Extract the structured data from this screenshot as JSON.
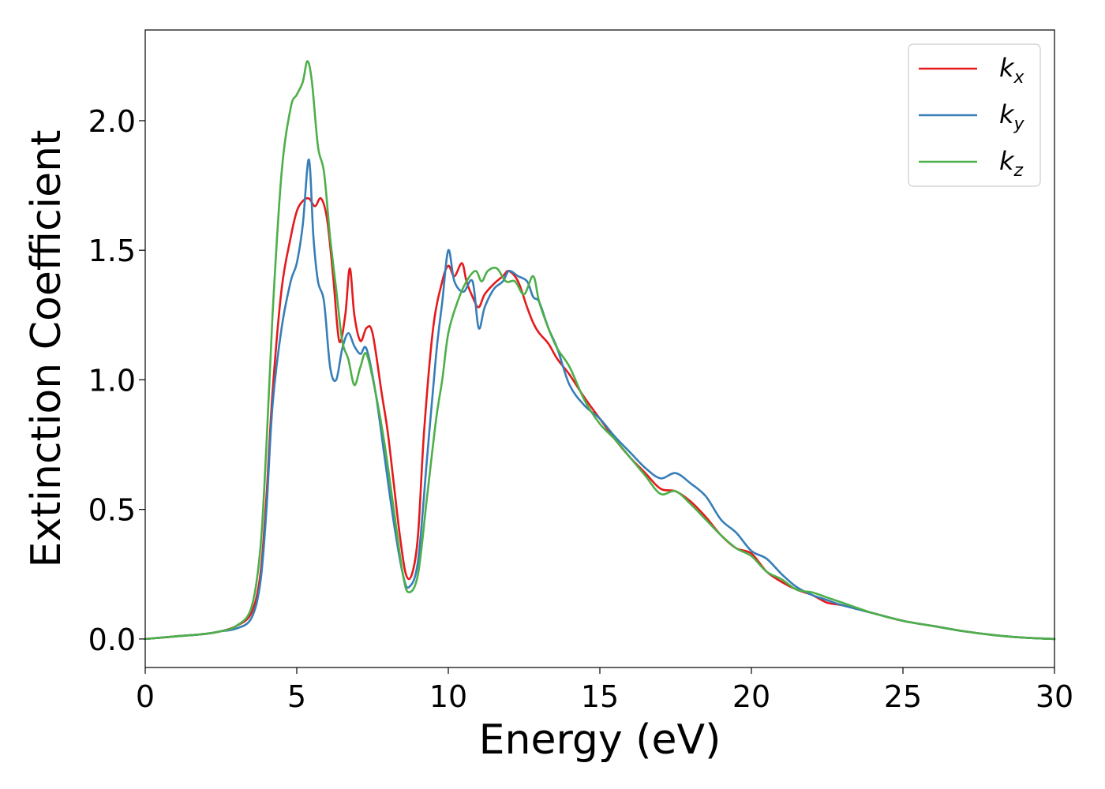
{
  "chart_data": {
    "type": "line",
    "title": "",
    "xlabel": "Energy (eV)",
    "ylabel": "Extinction Coefficient",
    "xlim": [
      0,
      30
    ],
    "ylim": [
      -0.11,
      2.35
    ],
    "xticks": [
      0,
      5,
      10,
      15,
      20,
      25,
      30
    ],
    "xtick_labels": [
      "0",
      "5",
      "10",
      "15",
      "20",
      "25",
      "30"
    ],
    "yticks": [
      0.0,
      0.5,
      1.0,
      1.5,
      2.0
    ],
    "ytick_labels": [
      "0.0",
      "0.5",
      "1.0",
      "1.5",
      "2.0"
    ],
    "grid": false,
    "legend_position": "top-right",
    "series": [
      {
        "name": "k",
        "subscript": "x",
        "color": "#e41a1c",
        "x": [
          0,
          1,
          2,
          2.5,
          3,
          3.5,
          3.8,
          4,
          4.2,
          4.5,
          4.8,
          5.0,
          5.2,
          5.4,
          5.6,
          5.8,
          6.0,
          6.2,
          6.4,
          6.6,
          6.75,
          6.9,
          7.1,
          7.3,
          7.5,
          7.8,
          8.0,
          8.2,
          8.4,
          8.6,
          8.8,
          9.0,
          9.2,
          9.5,
          9.8,
          10.0,
          10.2,
          10.45,
          10.6,
          10.8,
          11.0,
          11.2,
          11.5,
          11.8,
          12.0,
          12.3,
          12.6,
          12.8,
          13.0,
          13.3,
          13.6,
          14.0,
          14.5,
          15.0,
          15.5,
          16.0,
          16.5,
          17.0,
          17.5,
          18.0,
          18.5,
          19.0,
          19.5,
          20.0,
          20.5,
          21.0,
          21.5,
          22.0,
          22.5,
          23.0,
          24.0,
          25.0,
          26.0,
          27.0,
          28.0,
          29.0,
          30.0
        ],
        "y": [
          0.0,
          0.01,
          0.02,
          0.03,
          0.05,
          0.1,
          0.25,
          0.55,
          0.95,
          1.35,
          1.55,
          1.65,
          1.69,
          1.7,
          1.67,
          1.7,
          1.62,
          1.4,
          1.15,
          1.25,
          1.43,
          1.25,
          1.15,
          1.2,
          1.18,
          0.95,
          0.8,
          0.6,
          0.4,
          0.25,
          0.25,
          0.4,
          0.8,
          1.2,
          1.38,
          1.44,
          1.4,
          1.45,
          1.38,
          1.32,
          1.28,
          1.33,
          1.37,
          1.4,
          1.42,
          1.38,
          1.28,
          1.22,
          1.18,
          1.14,
          1.08,
          1.02,
          0.93,
          0.85,
          0.77,
          0.7,
          0.64,
          0.58,
          0.57,
          0.53,
          0.47,
          0.4,
          0.35,
          0.33,
          0.26,
          0.22,
          0.19,
          0.17,
          0.14,
          0.13,
          0.1,
          0.07,
          0.05,
          0.03,
          0.015,
          0.005,
          0.0
        ]
      },
      {
        "name": "k",
        "subscript": "y",
        "color": "#377eb8",
        "x": [
          0,
          1,
          2,
          2.5,
          3,
          3.5,
          3.8,
          4,
          4.2,
          4.5,
          4.8,
          5.0,
          5.2,
          5.4,
          5.55,
          5.7,
          5.9,
          6.1,
          6.3,
          6.5,
          6.7,
          6.9,
          7.1,
          7.3,
          7.6,
          7.9,
          8.2,
          8.5,
          8.7,
          9.0,
          9.3,
          9.6,
          9.8,
          10.0,
          10.2,
          10.5,
          10.8,
          11.0,
          11.2,
          11.5,
          11.8,
          12.0,
          12.3,
          12.6,
          12.8,
          13.0,
          13.3,
          13.6,
          14.0,
          14.5,
          15.0,
          15.5,
          16.0,
          16.5,
          17.0,
          17.5,
          18.0,
          18.5,
          19.0,
          19.5,
          20.0,
          20.5,
          21.0,
          21.5,
          22.0,
          22.5,
          23.0,
          24.0,
          25.0,
          26.0,
          27.0,
          28.0,
          29.0,
          30.0
        ],
        "y": [
          0.0,
          0.01,
          0.02,
          0.03,
          0.04,
          0.08,
          0.22,
          0.5,
          0.9,
          1.2,
          1.38,
          1.45,
          1.6,
          1.85,
          1.55,
          1.38,
          1.3,
          1.05,
          1.0,
          1.12,
          1.18,
          1.13,
          1.1,
          1.12,
          0.95,
          0.7,
          0.45,
          0.25,
          0.2,
          0.3,
          0.7,
          1.1,
          1.3,
          1.5,
          1.38,
          1.34,
          1.38,
          1.2,
          1.28,
          1.35,
          1.38,
          1.42,
          1.4,
          1.38,
          1.32,
          1.3,
          1.2,
          1.12,
          0.98,
          0.9,
          0.85,
          0.78,
          0.72,
          0.66,
          0.62,
          0.64,
          0.6,
          0.55,
          0.46,
          0.41,
          0.34,
          0.31,
          0.25,
          0.2,
          0.17,
          0.15,
          0.13,
          0.1,
          0.07,
          0.05,
          0.03,
          0.015,
          0.005,
          0.0
        ]
      },
      {
        "name": "k",
        "subscript": "z",
        "color": "#4daf4a",
        "x": [
          0,
          1,
          2,
          2.5,
          3,
          3.5,
          3.8,
          4,
          4.2,
          4.5,
          4.8,
          5.0,
          5.2,
          5.35,
          5.5,
          5.7,
          5.9,
          6.1,
          6.3,
          6.5,
          6.7,
          6.9,
          7.1,
          7.3,
          7.6,
          7.9,
          8.2,
          8.5,
          8.7,
          9.0,
          9.3,
          9.6,
          9.8,
          10.0,
          10.3,
          10.6,
          10.9,
          11.1,
          11.3,
          11.6,
          11.9,
          12.2,
          12.5,
          12.8,
          13.0,
          13.3,
          13.6,
          14.0,
          14.5,
          15.0,
          15.5,
          16.0,
          16.5,
          17.0,
          17.5,
          18.0,
          18.5,
          19.0,
          19.5,
          20.0,
          20.5,
          21.0,
          21.5,
          22.0,
          22.5,
          23.0,
          24.0,
          25.0,
          26.0,
          27.0,
          28.0,
          29.0,
          30.0
        ],
        "y": [
          0.0,
          0.01,
          0.02,
          0.03,
          0.05,
          0.12,
          0.35,
          0.75,
          1.25,
          1.8,
          2.05,
          2.1,
          2.15,
          2.23,
          2.15,
          1.9,
          1.8,
          1.55,
          1.35,
          1.15,
          1.08,
          0.98,
          1.05,
          1.1,
          0.95,
          0.75,
          0.5,
          0.25,
          0.18,
          0.25,
          0.55,
          0.85,
          1.0,
          1.18,
          1.3,
          1.38,
          1.42,
          1.38,
          1.42,
          1.43,
          1.38,
          1.38,
          1.33,
          1.4,
          1.3,
          1.2,
          1.12,
          1.05,
          0.92,
          0.83,
          0.77,
          0.7,
          0.63,
          0.56,
          0.57,
          0.52,
          0.46,
          0.4,
          0.35,
          0.32,
          0.26,
          0.23,
          0.19,
          0.18,
          0.16,
          0.14,
          0.1,
          0.07,
          0.05,
          0.03,
          0.015,
          0.005,
          0.0
        ]
      }
    ]
  }
}
